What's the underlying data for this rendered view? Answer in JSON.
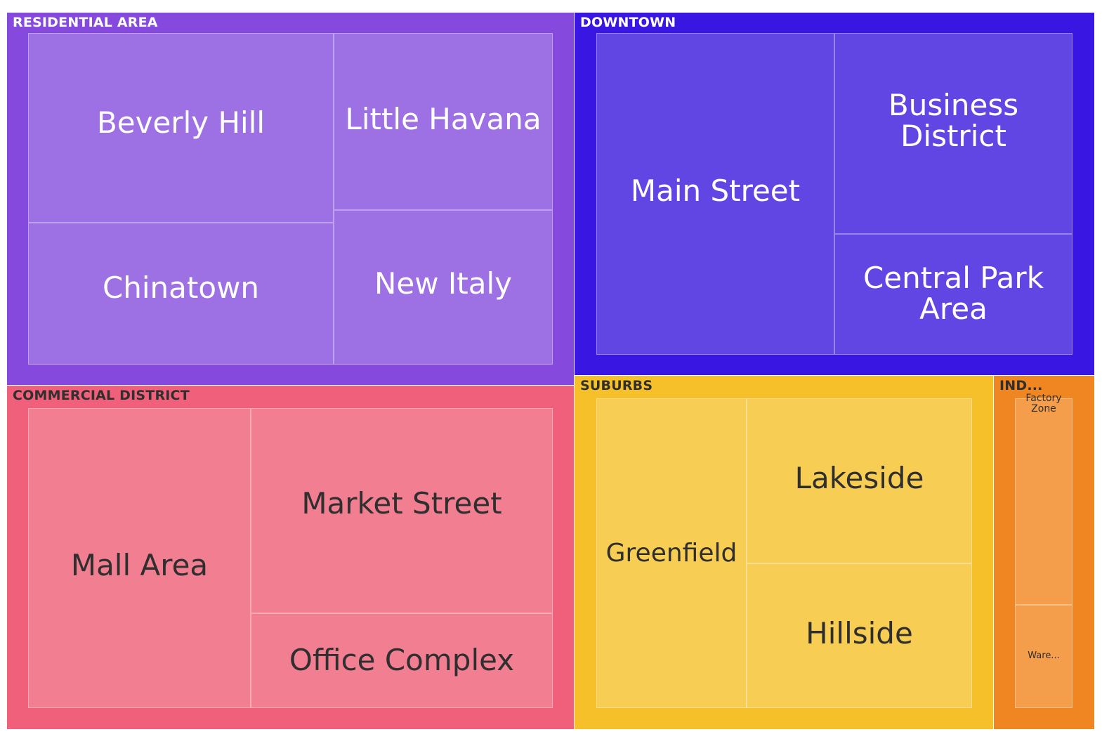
{
  "chart_data": {
    "type": "treemap",
    "groups": [
      {
        "label": "RESIDENTIAL AREA",
        "color": "#8549de",
        "leaf_color": "#9d70e3",
        "text_color": "#ffffff",
        "children": [
          {
            "label": "Beverly Hill"
          },
          {
            "label": "Chinatown"
          },
          {
            "label": "Little Havana"
          },
          {
            "label": "New Italy"
          }
        ]
      },
      {
        "label": "DOWNTOWN",
        "color": "#3a16e2",
        "leaf_color": "#6246e4",
        "text_color": "#ffffff",
        "children": [
          {
            "label": "Main Street"
          },
          {
            "label": "Business\nDistrict"
          },
          {
            "label": "Central Park\nArea"
          }
        ]
      },
      {
        "label": "COMMERCIAL DISTRICT",
        "color": "#f0607a",
        "leaf_color": "#f27e91",
        "text_color": "#2f2f2f",
        "children": [
          {
            "label": "Mall Area"
          },
          {
            "label": "Market Street"
          },
          {
            "label": "Office Complex"
          }
        ]
      },
      {
        "label": "SUBURBS",
        "color": "#f5c02a",
        "leaf_color": "#f8cd53",
        "text_color": "#2f2f2f",
        "children": [
          {
            "label": "Greenfield"
          },
          {
            "label": "Lakeside"
          },
          {
            "label": "Hillside"
          }
        ]
      },
      {
        "label": "IND...",
        "color": "#f08621",
        "leaf_color": "#f49e4c",
        "text_color": "#2f2f2f",
        "children": [
          {
            "label": "Factory\nZone"
          },
          {
            "label": "Ware..."
          }
        ]
      }
    ]
  }
}
